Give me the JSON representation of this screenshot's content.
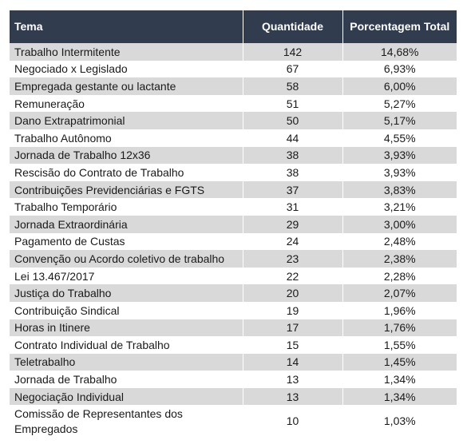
{
  "table": {
    "headers": {
      "tema": "Tema",
      "quantidade": "Quantidade",
      "porcentagem": "Porcentagem Total"
    },
    "rows": [
      {
        "tema": "Trabalho Intermitente",
        "quantidade": "142",
        "porcentagem": "14,68%"
      },
      {
        "tema": "Negociado x Legislado",
        "quantidade": "67",
        "porcentagem": "6,93%"
      },
      {
        "tema": "Empregada gestante ou lactante",
        "quantidade": "58",
        "porcentagem": "6,00%"
      },
      {
        "tema": "Remuneração",
        "quantidade": "51",
        "porcentagem": "5,27%"
      },
      {
        "tema": "Dano Extrapatrimonial",
        "quantidade": "50",
        "porcentagem": "5,17%"
      },
      {
        "tema": "Trabalho Autônomo",
        "quantidade": "44",
        "porcentagem": "4,55%"
      },
      {
        "tema": "Jornada de Trabalho 12x36",
        "quantidade": "38",
        "porcentagem": "3,93%"
      },
      {
        "tema": "Rescisão do Contrato de Trabalho",
        "quantidade": "38",
        "porcentagem": "3,93%"
      },
      {
        "tema": "Contribuições Previdenciárias e FGTS",
        "quantidade": "37",
        "porcentagem": "3,83%"
      },
      {
        "tema": "Trabalho Temporário",
        "quantidade": "31",
        "porcentagem": "3,21%"
      },
      {
        "tema": "Jornada Extraordinária",
        "quantidade": "29",
        "porcentagem": "3,00%"
      },
      {
        "tema": "Pagamento de Custas",
        "quantidade": "24",
        "porcentagem": "2,48%"
      },
      {
        "tema": "Convenção ou Acordo coletivo de trabalho",
        "quantidade": "23",
        "porcentagem": "2,38%"
      },
      {
        "tema": "Lei 13.467/2017",
        "quantidade": "22",
        "porcentagem": "2,28%"
      },
      {
        "tema": "Justiça do Trabalho",
        "quantidade": "20",
        "porcentagem": "2,07%"
      },
      {
        "tema": "Contribuição Sindical",
        "quantidade": "19",
        "porcentagem": "1,96%"
      },
      {
        "tema": "Horas in Itinere",
        "quantidade": "17",
        "porcentagem": "1,76%"
      },
      {
        "tema": "Contrato Individual de Trabalho",
        "quantidade": "15",
        "porcentagem": "1,55%"
      },
      {
        "tema": "Teletrabalho",
        "quantidade": "14",
        "porcentagem": "1,45%"
      },
      {
        "tema": "Jornada de Trabalho",
        "quantidade": "13",
        "porcentagem": "1,34%"
      },
      {
        "tema": "Negociação Individual",
        "quantidade": "13",
        "porcentagem": "1,34%"
      },
      {
        "tema": "Comissão de Representantes dos Empregados",
        "quantidade": "10",
        "porcentagem": "1,03%"
      }
    ]
  },
  "colors": {
    "header_bg": "#323c4f",
    "header_text": "#ffffff",
    "row_shade": "#d9d9d9",
    "row_plain": "#ffffff"
  }
}
